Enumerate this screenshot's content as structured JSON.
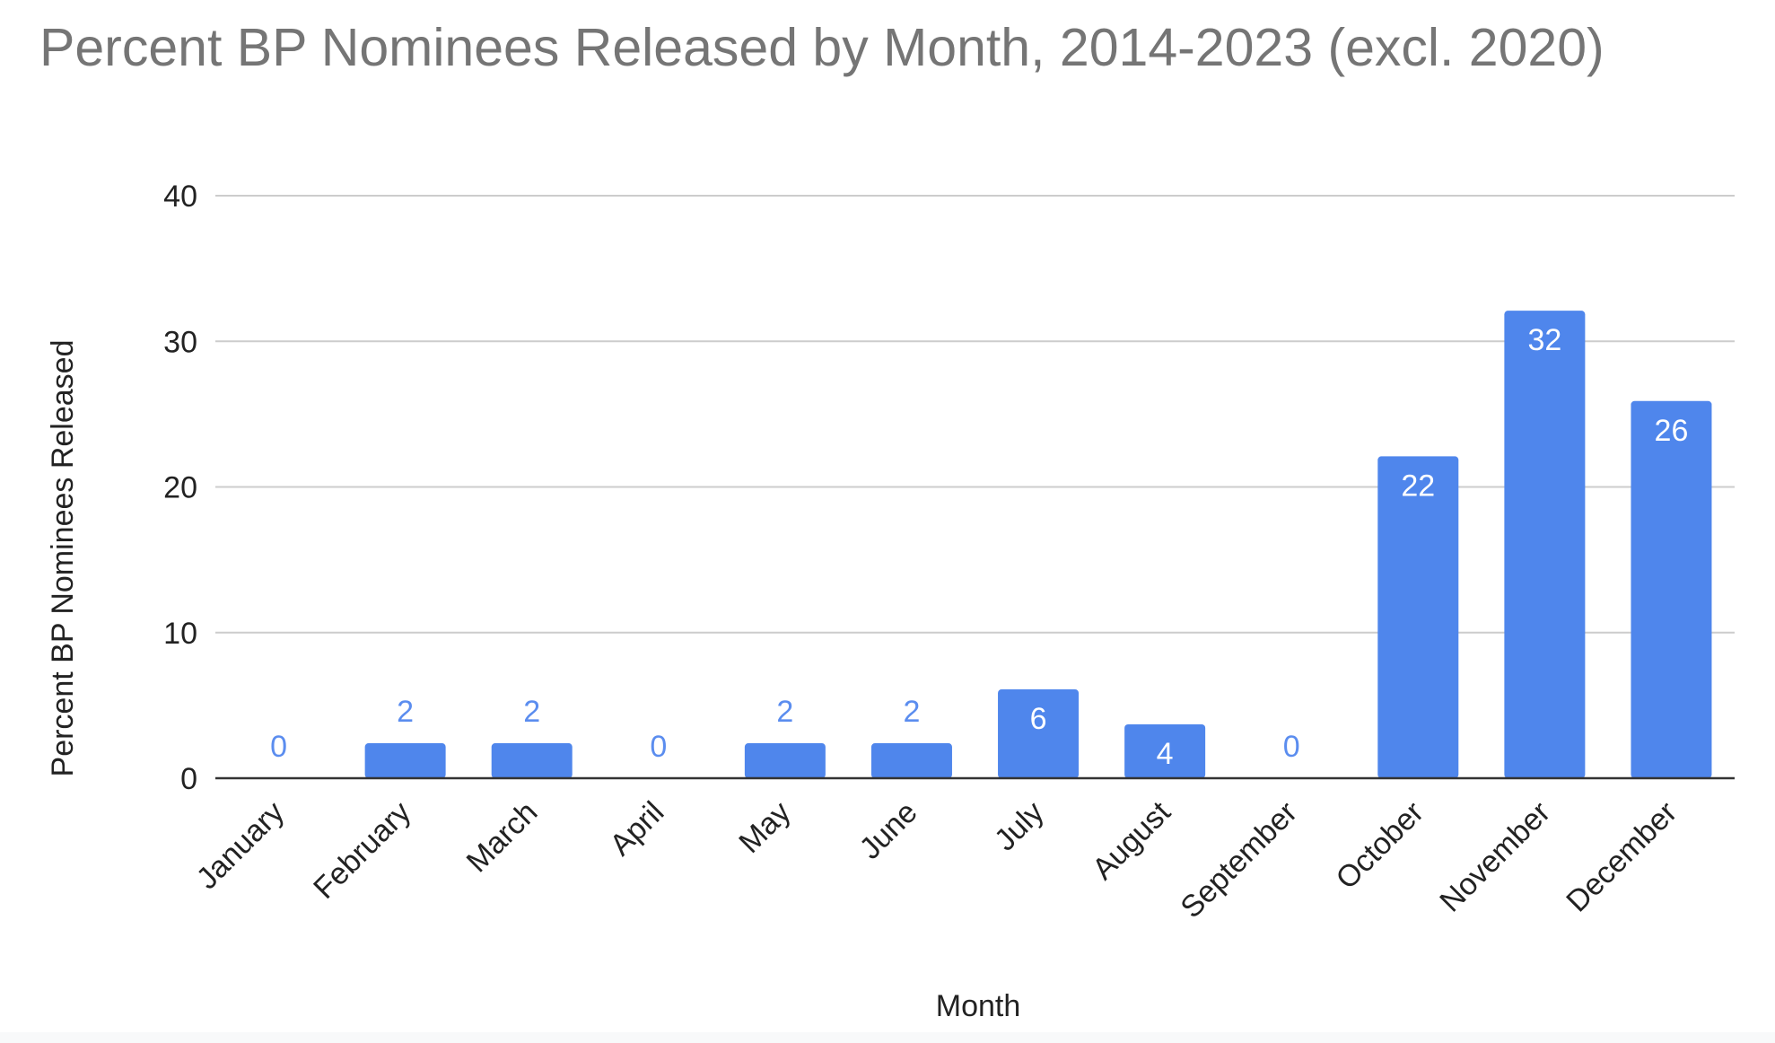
{
  "chart_data": {
    "type": "bar",
    "title": "Percent BP Nominees Released by Month, 2014-2023 (excl. 2020)",
    "xlabel": "Month",
    "ylabel": "Percent BP Nominees Released",
    "categories": [
      "January",
      "February",
      "March",
      "April",
      "May",
      "June",
      "July",
      "August",
      "September",
      "October",
      "November",
      "December"
    ],
    "values": [
      0,
      2.4,
      2.4,
      0,
      2.4,
      2.4,
      6.1,
      3.7,
      0,
      22.1,
      32.1,
      25.9
    ],
    "data_labels": [
      "0",
      "2",
      "2",
      "0",
      "2",
      "2",
      "6",
      "4",
      "0",
      "22",
      "32",
      "26"
    ],
    "ylim": [
      0,
      40
    ],
    "yticks": [
      "0",
      "10",
      "20",
      "30",
      "40"
    ],
    "grid": true,
    "legend": "none",
    "colors": {
      "bar": "#4f86ec",
      "label_outside": "#5b8def",
      "label_inside": "#ffffff",
      "grid": "#cccccc",
      "baseline": "#333333",
      "title": "#757575",
      "text": "#222222"
    }
  }
}
